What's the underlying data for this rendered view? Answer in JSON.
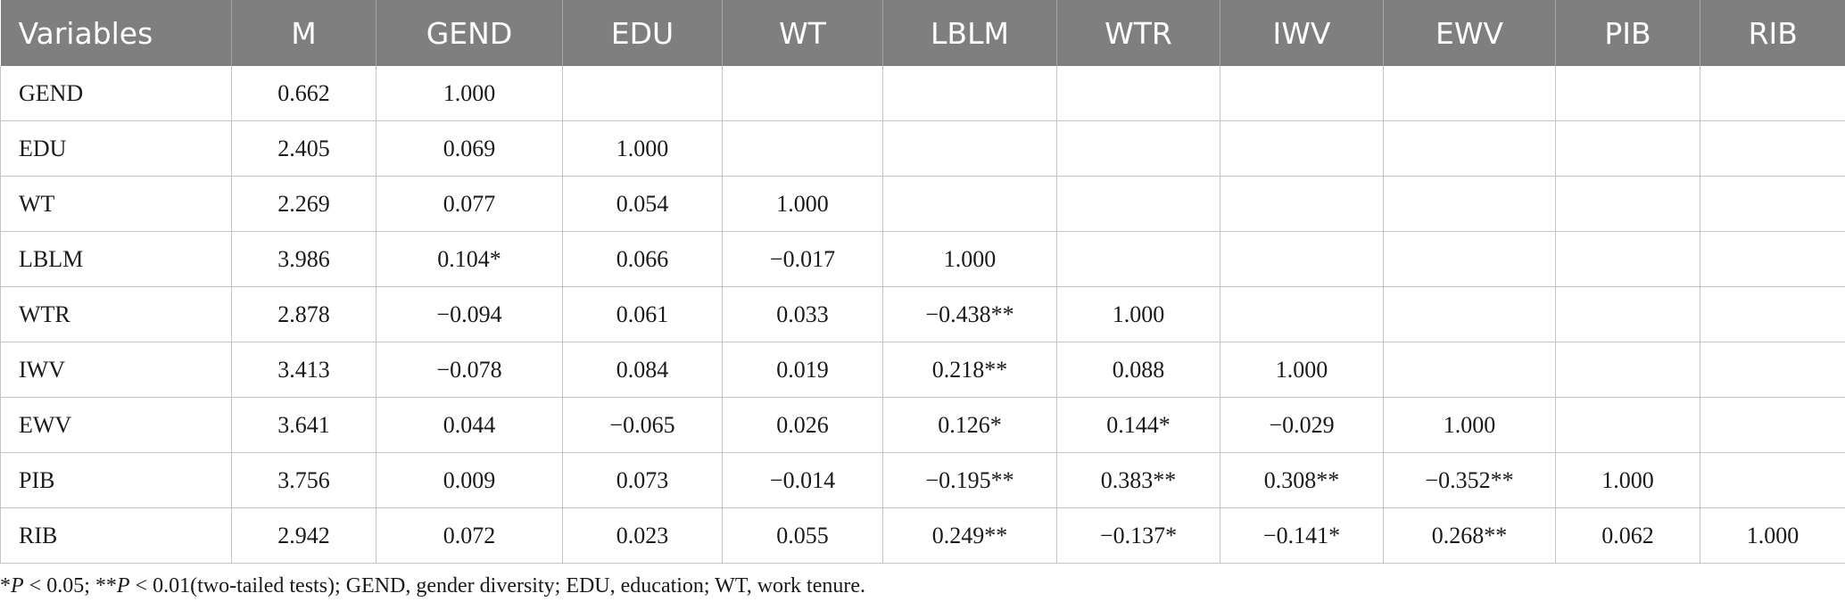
{
  "table": {
    "headers": [
      "Variables",
      "M",
      "GEND",
      "EDU",
      "WT",
      "LBLM",
      "WTR",
      "IWV",
      "EWV",
      "PIB",
      "RIB"
    ],
    "rows": [
      [
        "GEND",
        "0.662",
        "1.000",
        "",
        "",
        "",
        "",
        "",
        "",
        "",
        ""
      ],
      [
        "EDU",
        "2.405",
        "0.069",
        "1.000",
        "",
        "",
        "",
        "",
        "",
        "",
        ""
      ],
      [
        "WT",
        "2.269",
        "0.077",
        "0.054",
        "1.000",
        "",
        "",
        "",
        "",
        "",
        ""
      ],
      [
        "LBLM",
        "3.986",
        "0.104*",
        "0.066",
        "−0.017",
        "1.000",
        "",
        "",
        "",
        "",
        ""
      ],
      [
        "WTR",
        "2.878",
        "−0.094",
        "0.061",
        "0.033",
        "−0.438**",
        "1.000",
        "",
        "",
        "",
        ""
      ],
      [
        "IWV",
        "3.413",
        "−0.078",
        "0.084",
        "0.019",
        "0.218**",
        "0.088",
        "1.000",
        "",
        "",
        ""
      ],
      [
        "EWV",
        "3.641",
        "0.044",
        "−0.065",
        "0.026",
        "0.126*",
        "0.144*",
        "−0.029",
        "1.000",
        "",
        ""
      ],
      [
        "PIB",
        "3.756",
        "0.009",
        "0.073",
        "−0.014",
        "−0.195**",
        "0.383**",
        "0.308**",
        "−0.352**",
        "1.000",
        ""
      ],
      [
        "RIB",
        "2.942",
        "0.072",
        "0.023",
        "0.055",
        "0.249**",
        "−0.137*",
        "−0.141*",
        "0.268**",
        "0.062",
        "1.000"
      ]
    ]
  },
  "footnote": {
    "p1_prefix": "*",
    "p1_var": "P",
    "p1_text": " < 0.05; **",
    "p2_var": "P",
    "p2_text": " < 0.01(two-tailed tests); GEND, gender diversity; EDU, education; WT, work tenure."
  }
}
